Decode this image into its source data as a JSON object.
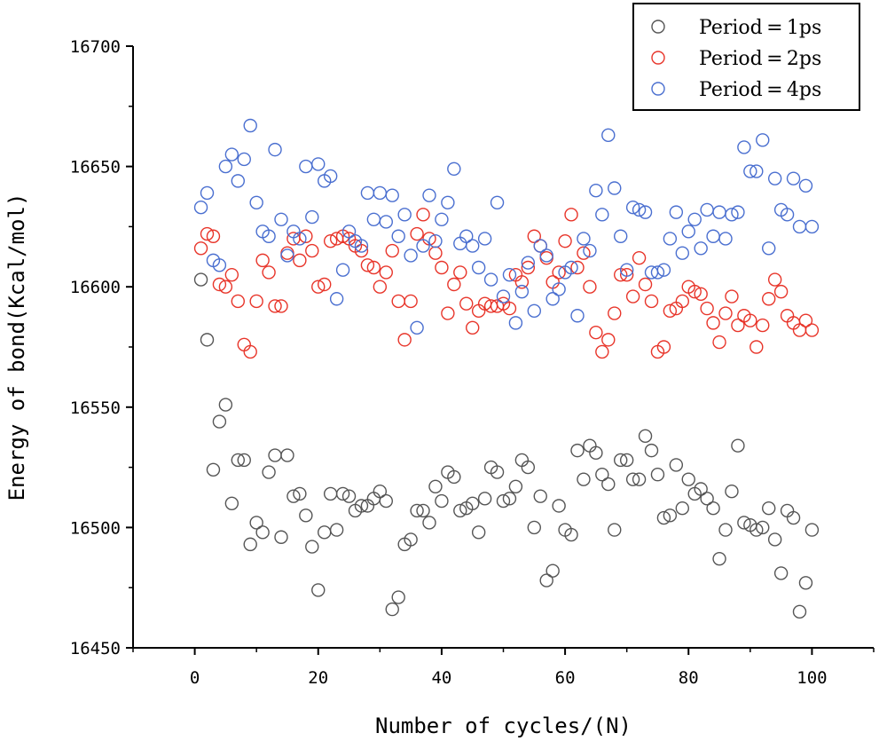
{
  "chart_data": {
    "type": "scatter",
    "title": "",
    "xlabel": "Number of cycles/(N)",
    "ylabel": "Energy of bond(Kcal/mol)",
    "xlim": [
      -10,
      110
    ],
    "ylim": [
      16450,
      16700
    ],
    "xticks": [
      0,
      20,
      40,
      60,
      80,
      100
    ],
    "yticks": [
      16450,
      16500,
      16550,
      16600,
      16650,
      16700
    ],
    "grid": false,
    "legend_position": "top-right",
    "series": [
      {
        "name": "Period = 1ps",
        "label": "Period = 1ps",
        "color": "#555555",
        "x": [
          1,
          2,
          3,
          4,
          5,
          6,
          7,
          8,
          9,
          10,
          11,
          12,
          13,
          14,
          15,
          16,
          17,
          18,
          19,
          20,
          21,
          22,
          23,
          24,
          25,
          26,
          27,
          28,
          29,
          30,
          31,
          32,
          33,
          34,
          35,
          36,
          37,
          38,
          39,
          40,
          41,
          42,
          43,
          44,
          45,
          46,
          47,
          48,
          49,
          50,
          51,
          52,
          53,
          54,
          55,
          56,
          57,
          58,
          59,
          60,
          61,
          62,
          63,
          64,
          65,
          66,
          67,
          68,
          69,
          70,
          71,
          72,
          73,
          74,
          75,
          76,
          77,
          78,
          79,
          80,
          81,
          82,
          83,
          84,
          85,
          86,
          87,
          88,
          89,
          90,
          91,
          92,
          93,
          94,
          95,
          96,
          97,
          98,
          99,
          100
        ],
        "y": [
          16603,
          16578,
          16524,
          16544,
          16551,
          16510,
          16528,
          16528,
          16493,
          16502,
          16498,
          16523,
          16530,
          16496,
          16530,
          16513,
          16514,
          16505,
          16492,
          16474,
          16498,
          16514,
          16499,
          16514,
          16513,
          16507,
          16509,
          16509,
          16512,
          16515,
          16511,
          16466,
          16471,
          16493,
          16495,
          16507,
          16507,
          16502,
          16517,
          16511,
          16523,
          16521,
          16507,
          16508,
          16510,
          16498,
          16512,
          16525,
          16523,
          16511,
          16512,
          16517,
          16528,
          16525,
          16500,
          16513,
          16478,
          16482,
          16509,
          16499,
          16497,
          16532,
          16520,
          16534,
          16531,
          16522,
          16518,
          16499,
          16528,
          16528,
          16520,
          16520,
          16538,
          16532,
          16522,
          16504,
          16505,
          16526,
          16508,
          16520,
          16514,
          16516,
          16512,
          16508,
          16487,
          16499,
          16515,
          16534,
          16502,
          16501,
          16499,
          16500,
          16508,
          16495,
          16481,
          16507,
          16504,
          16465,
          16477,
          16499
        ]
      },
      {
        "name": "Period = 2ps",
        "label": "Period = 2ps",
        "color": "#e8352a",
        "x": [
          1,
          2,
          3,
          4,
          5,
          6,
          7,
          8,
          9,
          10,
          11,
          12,
          13,
          14,
          15,
          16,
          17,
          18,
          19,
          20,
          21,
          22,
          23,
          24,
          25,
          26,
          27,
          28,
          29,
          30,
          31,
          32,
          33,
          34,
          35,
          36,
          37,
          38,
          39,
          40,
          41,
          42,
          43,
          44,
          45,
          46,
          47,
          48,
          49,
          50,
          51,
          52,
          53,
          54,
          55,
          56,
          57,
          58,
          59,
          60,
          61,
          62,
          63,
          64,
          65,
          66,
          67,
          68,
          69,
          70,
          71,
          72,
          73,
          74,
          75,
          76,
          77,
          78,
          79,
          80,
          81,
          82,
          83,
          84,
          85,
          86,
          87,
          88,
          89,
          90,
          91,
          92,
          93,
          94,
          95,
          96,
          97,
          98,
          99,
          100
        ],
        "y": [
          16616,
          16622,
          16621,
          16601,
          16600,
          16605,
          16594,
          16576,
          16573,
          16594,
          16611,
          16606,
          16592,
          16592,
          16614,
          16620,
          16611,
          16621,
          16615,
          16600,
          16601,
          16619,
          16620,
          16621,
          16620,
          16617,
          16615,
          16609,
          16608,
          16600,
          16606,
          16615,
          16594,
          16578,
          16594,
          16622,
          16630,
          16620,
          16614,
          16608,
          16589,
          16601,
          16606,
          16593,
          16583,
          16590,
          16593,
          16592,
          16592,
          16593,
          16591,
          16605,
          16602,
          16608,
          16621,
          16617,
          16612,
          16602,
          16606,
          16619,
          16630,
          16608,
          16614,
          16600,
          16581,
          16573,
          16578,
          16589,
          16605,
          16605,
          16596,
          16612,
          16601,
          16594,
          16573,
          16575,
          16590,
          16591,
          16594,
          16600,
          16598,
          16597,
          16591,
          16585,
          16577,
          16589,
          16596,
          16584,
          16588,
          16586,
          16575,
          16584,
          16595,
          16603,
          16598,
          16588,
          16585,
          16582,
          16586,
          16582
        ]
      },
      {
        "name": "Period = 4ps",
        "label": "Period = 4ps",
        "color": "#4a6fd0",
        "x": [
          1,
          2,
          3,
          4,
          5,
          6,
          7,
          8,
          9,
          10,
          11,
          12,
          13,
          14,
          15,
          16,
          17,
          18,
          19,
          20,
          21,
          22,
          23,
          24,
          25,
          26,
          27,
          28,
          29,
          30,
          31,
          32,
          33,
          34,
          35,
          36,
          37,
          38,
          39,
          40,
          41,
          42,
          43,
          44,
          45,
          46,
          47,
          48,
          49,
          50,
          51,
          52,
          53,
          54,
          55,
          56,
          57,
          58,
          59,
          60,
          61,
          62,
          63,
          64,
          65,
          66,
          67,
          68,
          69,
          70,
          71,
          72,
          73,
          74,
          75,
          76,
          77,
          78,
          79,
          80,
          81,
          82,
          83,
          84,
          85,
          86,
          87,
          88,
          89,
          90,
          91,
          92,
          93,
          94,
          95,
          96,
          97,
          98,
          99,
          100
        ],
        "y": [
          16633,
          16639,
          16611,
          16609,
          16650,
          16655,
          16644,
          16653,
          16667,
          16635,
          16623,
          16621,
          16657,
          16628,
          16613,
          16623,
          16620,
          16650,
          16629,
          16651,
          16644,
          16646,
          16595,
          16607,
          16623,
          16619,
          16617,
          16639,
          16628,
          16639,
          16627,
          16638,
          16621,
          16630,
          16613,
          16583,
          16617,
          16638,
          16619,
          16628,
          16635,
          16649,
          16618,
          16621,
          16617,
          16608,
          16620,
          16603,
          16635,
          16596,
          16605,
          16585,
          16598,
          16610,
          16590,
          16617,
          16613,
          16595,
          16599,
          16606,
          16608,
          16588,
          16620,
          16615,
          16640,
          16630,
          16663,
          16641,
          16621,
          16607,
          16633,
          16632,
          16631,
          16606,
          16606,
          16607,
          16620,
          16631,
          16614,
          16623,
          16628,
          16616,
          16632,
          16621,
          16631,
          16620,
          16630,
          16631,
          16658,
          16648,
          16648,
          16661,
          16616,
          16645,
          16632,
          16630,
          16645,
          16625,
          16642,
          16625
        ]
      }
    ]
  }
}
